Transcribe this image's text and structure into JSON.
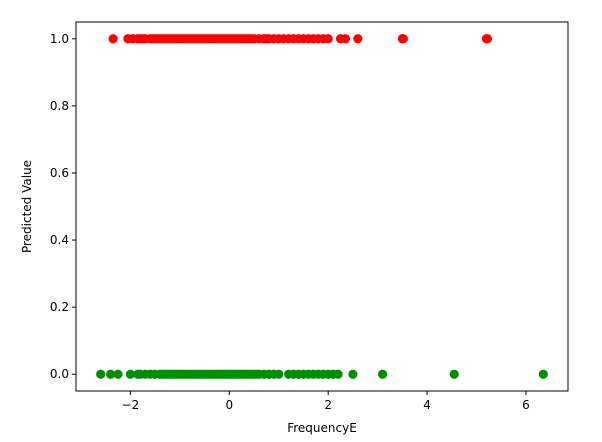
{
  "chart_data": {
    "type": "scatter",
    "title": "",
    "xlabel": "FrequencyE",
    "ylabel": "Predicted Value",
    "xlim": [
      -3.1,
      6.85
    ],
    "ylim": [
      -0.05,
      1.05
    ],
    "x_ticks": [
      -2,
      0,
      2,
      4,
      6
    ],
    "x_tick_labels": [
      "−2",
      "0",
      "2",
      "4",
      "6"
    ],
    "y_ticks": [
      0.0,
      0.2,
      0.4,
      0.6,
      0.8,
      1.0
    ],
    "y_tick_labels": [
      "0.0",
      "0.2",
      "0.4",
      "0.6",
      "0.8",
      "1.0"
    ],
    "grid": false,
    "legend": "none",
    "series": [
      {
        "color": "#ff0000",
        "y": 1.0,
        "x": [
          -2.35,
          -2.05,
          -1.95,
          -1.85,
          -1.8,
          -1.75,
          -1.7,
          -1.6,
          -1.55,
          -1.5,
          -1.45,
          -1.4,
          -1.35,
          -1.3,
          -1.25,
          -1.2,
          -1.15,
          -1.1,
          -1.05,
          -1.0,
          -0.95,
          -0.9,
          -0.85,
          -0.8,
          -0.75,
          -0.7,
          -0.65,
          -0.6,
          -0.55,
          -0.5,
          -0.45,
          -0.4,
          -0.35,
          -0.3,
          -0.25,
          -0.2,
          -0.15,
          -0.1,
          -0.05,
          0.0,
          0.05,
          0.1,
          0.15,
          0.2,
          0.25,
          0.3,
          0.35,
          0.4,
          0.45,
          0.5,
          0.6,
          0.7,
          0.75,
          0.8,
          0.9,
          1.0,
          1.1,
          1.2,
          1.3,
          1.4,
          1.5,
          1.6,
          1.7,
          1.8,
          1.9,
          2.0,
          2.25,
          2.35,
          2.6,
          3.5,
          3.52,
          5.2,
          5.22
        ]
      },
      {
        "color": "#008f00",
        "y": 0.0,
        "x": [
          -2.6,
          -2.4,
          -2.25,
          -2.0,
          -1.85,
          -1.8,
          -1.7,
          -1.6,
          -1.5,
          -1.4,
          -1.35,
          -1.3,
          -1.25,
          -1.2,
          -1.15,
          -1.1,
          -1.05,
          -1.0,
          -0.95,
          -0.9,
          -0.85,
          -0.8,
          -0.75,
          -0.7,
          -0.65,
          -0.6,
          -0.55,
          -0.5,
          -0.45,
          -0.4,
          -0.35,
          -0.3,
          -0.25,
          -0.2,
          -0.15,
          -0.1,
          -0.05,
          0.0,
          0.05,
          0.1,
          0.15,
          0.2,
          0.25,
          0.3,
          0.35,
          0.4,
          0.45,
          0.5,
          0.55,
          0.6,
          0.7,
          0.8,
          0.9,
          1.0,
          1.2,
          1.3,
          1.4,
          1.5,
          1.6,
          1.7,
          1.8,
          1.9,
          2.0,
          2.1,
          2.2,
          2.5,
          3.1,
          4.55,
          6.35
        ]
      }
    ]
  }
}
